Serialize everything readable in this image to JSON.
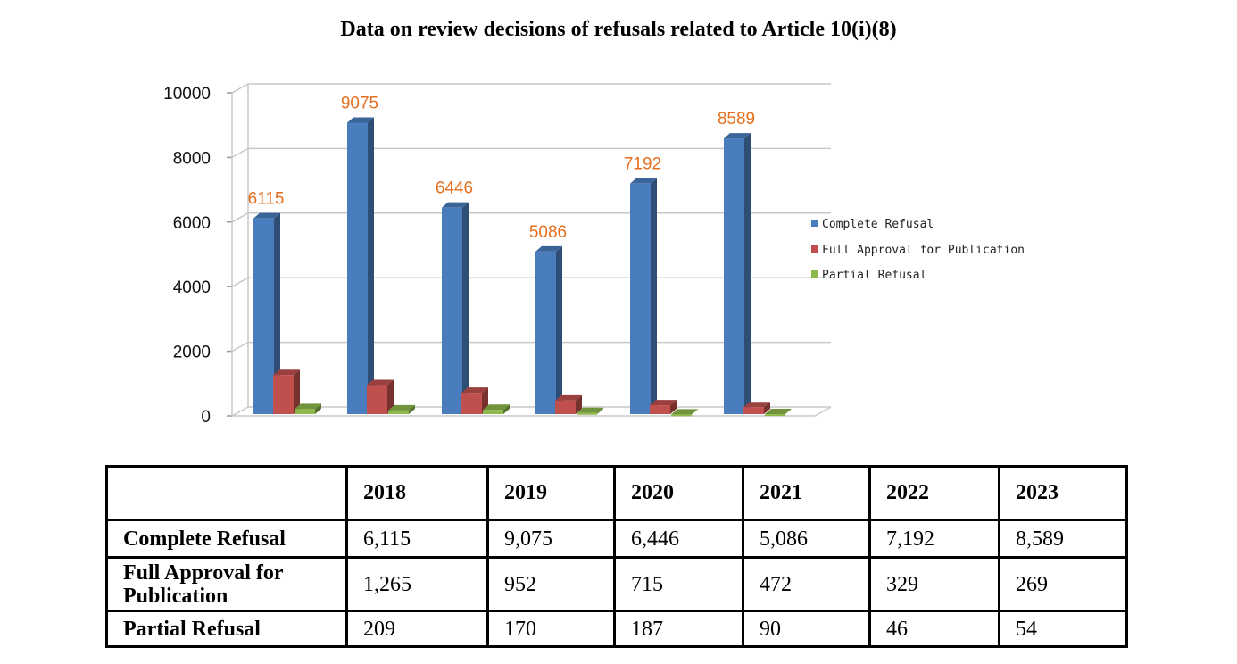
{
  "chart_data": {
    "type": "bar",
    "title": "Data on review decisions of refusals related to Article 10(i)(8)",
    "categories": [
      "2018",
      "2019",
      "2020",
      "2021",
      "2022",
      "2023"
    ],
    "series": [
      {
        "name": "Complete Refusal",
        "values": [
          6115,
          9075,
          6446,
          5086,
          7192,
          8589
        ],
        "color": "#4a7dbe"
      },
      {
        "name": "Full Approval for Publication",
        "values": [
          1265,
          952,
          715,
          472,
          329,
          269
        ],
        "color": "#c0504d"
      },
      {
        "name": "Partial Refusal",
        "values": [
          209,
          170,
          187,
          90,
          46,
          54
        ],
        "color": "#8db84a"
      }
    ],
    "data_labels": [
      "6115",
      "9075",
      "6446",
      "5086",
      "7192",
      "8589"
    ],
    "y_ticks": [
      "0",
      "2000",
      "4000",
      "6000",
      "8000",
      "10000"
    ],
    "ylim": [
      0,
      10000
    ],
    "grid": true,
    "legend_position": "right",
    "style": "3d-bar"
  },
  "table": {
    "headers": [
      "",
      "2018",
      "2019",
      "2020",
      "2021",
      "2022",
      "2023"
    ],
    "rows": [
      {
        "label": "Complete Refusal",
        "values": [
          "6,115",
          "9,075",
          "6,446",
          "5,086",
          "7,192",
          "8,589"
        ]
      },
      {
        "label": "Full Approval for Publication",
        "values": [
          "1,265",
          "952",
          "715",
          "472",
          "329",
          "269"
        ]
      },
      {
        "label": "Partial Refusal",
        "values": [
          "209",
          "170",
          "187",
          "90",
          "46",
          "54"
        ]
      }
    ]
  }
}
